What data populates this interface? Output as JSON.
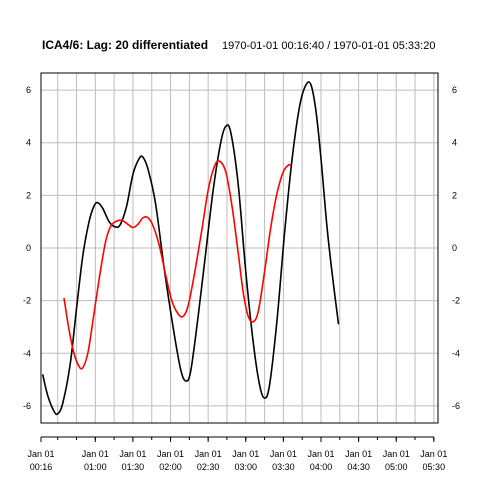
{
  "chart_data": {
    "type": "line",
    "title": "ICA4/6:  Lag: 20 differentiated",
    "subtitle": "1970-01-01 00:16:40 / 1970-01-01 05:33:20",
    "xlabel": "",
    "ylabel": "",
    "time_origin": "1970-01-01 00:00",
    "x_range_minutes": [
      16.67,
      333.33
    ],
    "ylim": [
      -6.65,
      6.65
    ],
    "y_ticks": [
      -6,
      -4,
      -2,
      0,
      2,
      4,
      6
    ],
    "x_ticks": [
      {
        "minutes": 16.67,
        "label": [
          "Jan 01",
          "00:16"
        ]
      },
      {
        "minutes": 60,
        "label": [
          "Jan 01",
          "01:00"
        ]
      },
      {
        "minutes": 90,
        "label": [
          "Jan 01",
          "01:30"
        ]
      },
      {
        "minutes": 120,
        "label": [
          "Jan 01",
          "02:00"
        ]
      },
      {
        "minutes": 150,
        "label": [
          "Jan 01",
          "02:30"
        ]
      },
      {
        "minutes": 180,
        "label": [
          "Jan 01",
          "03:00"
        ]
      },
      {
        "minutes": 210,
        "label": [
          "Jan 01",
          "03:30"
        ]
      },
      {
        "minutes": 240,
        "label": [
          "Jan 01",
          "04:00"
        ]
      },
      {
        "minutes": 270,
        "label": [
          "Jan 01",
          "04:30"
        ]
      },
      {
        "minutes": 300,
        "label": [
          "Jan 01",
          "05:00"
        ]
      },
      {
        "minutes": 330,
        "label": [
          "Jan 01",
          "05:30"
        ]
      }
    ],
    "grid": true,
    "legend": "none",
    "series": [
      {
        "color": "#000000",
        "points": [
          [
            18,
            -4.8
          ],
          [
            22,
            -5.6
          ],
          [
            27,
            -6.2
          ],
          [
            30,
            -6.3
          ],
          [
            34,
            -5.9
          ],
          [
            40,
            -4.4
          ],
          [
            45,
            -2.3
          ],
          [
            50,
            -0.3
          ],
          [
            55,
            1.0
          ],
          [
            59,
            1.6
          ],
          [
            62,
            1.72
          ],
          [
            66,
            1.5
          ],
          [
            71,
            1.0
          ],
          [
            76,
            0.8
          ],
          [
            80,
            0.9
          ],
          [
            85,
            1.6
          ],
          [
            90,
            2.8
          ],
          [
            95,
            3.4
          ],
          [
            98,
            3.45
          ],
          [
            102,
            3.0
          ],
          [
            108,
            1.7
          ],
          [
            115,
            -0.8
          ],
          [
            122,
            -3.0
          ],
          [
            128,
            -4.6
          ],
          [
            132,
            -5.05
          ],
          [
            136,
            -4.7
          ],
          [
            142,
            -2.6
          ],
          [
            148,
            -0.2
          ],
          [
            154,
            2.2
          ],
          [
            160,
            4.0
          ],
          [
            164,
            4.62
          ],
          [
            168,
            4.4
          ],
          [
            174,
            2.4
          ],
          [
            180,
            -0.9
          ],
          [
            186,
            -3.6
          ],
          [
            191,
            -5.2
          ],
          [
            195,
            -5.7
          ],
          [
            199,
            -5.2
          ],
          [
            205,
            -2.7
          ],
          [
            211,
            0.6
          ],
          [
            217,
            3.4
          ],
          [
            223,
            5.4
          ],
          [
            228,
            6.2
          ],
          [
            232,
            6.2
          ],
          [
            236,
            5.2
          ],
          [
            240,
            3.4
          ],
          [
            245,
            0.7
          ],
          [
            250,
            -1.4
          ],
          [
            254,
            -2.9
          ]
        ]
      },
      {
        "color": "#ff0000",
        "points": [
          [
            35,
            -1.9
          ],
          [
            39,
            -3.1
          ],
          [
            43,
            -4.0
          ],
          [
            47,
            -4.5
          ],
          [
            50,
            -4.55
          ],
          [
            54,
            -4.0
          ],
          [
            58,
            -2.8
          ],
          [
            63,
            -1.2
          ],
          [
            68,
            0.2
          ],
          [
            72,
            0.8
          ],
          [
            76,
            1.0
          ],
          [
            81,
            1.05
          ],
          [
            86,
            0.9
          ],
          [
            90,
            0.78
          ],
          [
            94,
            0.9
          ],
          [
            98,
            1.15
          ],
          [
            102,
            1.15
          ],
          [
            106,
            0.85
          ],
          [
            111,
            0.1
          ],
          [
            116,
            -1.0
          ],
          [
            121,
            -2.0
          ],
          [
            126,
            -2.5
          ],
          [
            130,
            -2.6
          ],
          [
            134,
            -2.2
          ],
          [
            139,
            -1.0
          ],
          [
            145,
            0.7
          ],
          [
            150,
            2.2
          ],
          [
            155,
            3.1
          ],
          [
            159,
            3.3
          ],
          [
            164,
            2.9
          ],
          [
            169,
            1.6
          ],
          [
            174,
            -0.2
          ],
          [
            178,
            -1.7
          ],
          [
            182,
            -2.6
          ],
          [
            186,
            -2.8
          ],
          [
            190,
            -2.4
          ],
          [
            195,
            -0.9
          ],
          [
            200,
            0.8
          ],
          [
            205,
            2.1
          ],
          [
            210,
            2.9
          ],
          [
            214,
            3.15
          ],
          [
            216,
            3.15
          ]
        ]
      }
    ]
  }
}
